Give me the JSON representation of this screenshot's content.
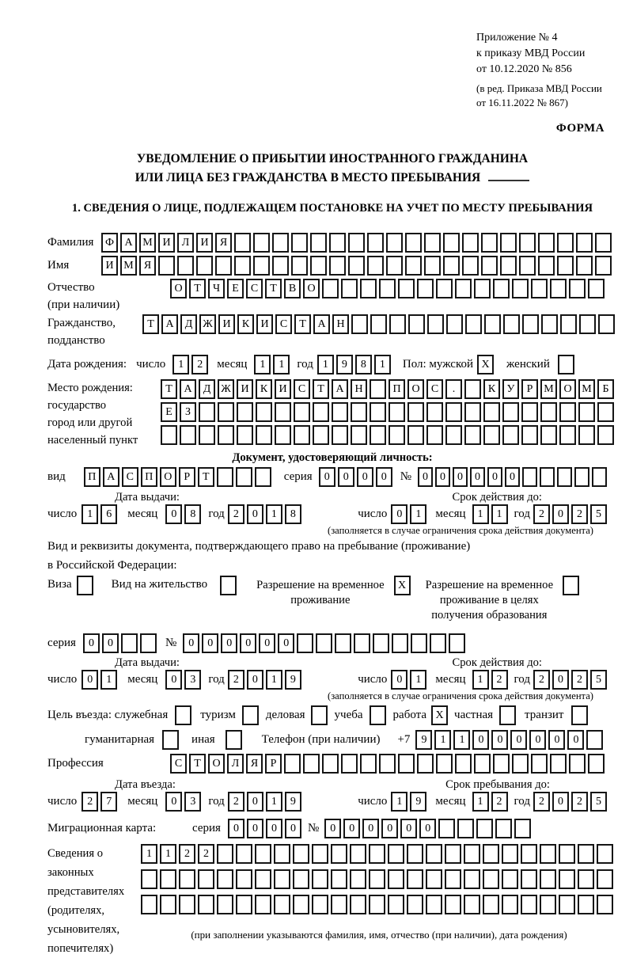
{
  "annex": {
    "line1": "Приложение № 4",
    "line2": "к приказу МВД России",
    "line3": "от 10.12.2020 № 856",
    "line4": "(в ред. Приказа МВД России",
    "line5": "от 16.11.2022 № 867)"
  },
  "form_label": "ФОРМА",
  "title": {
    "line1": "УВЕДОМЛЕНИЕ О ПРИБЫТИИ ИНОСТРАННОГО ГРАЖДАНИНА",
    "line2": "ИЛИ ЛИЦА БЕЗ ГРАЖДАНСТВА В МЕСТО ПРЕБЫВАНИЯ"
  },
  "section1_heading": "1. СВЕДЕНИЯ О ЛИЦЕ, ПОДЛЕЖАЩЕМ ПОСТАНОВКЕ НА УЧЕТ ПО МЕСТУ ПРЕБЫВАНИЯ",
  "labels": {
    "day": "число",
    "month": "месяц",
    "year": "год",
    "series": "серия",
    "number": "№",
    "issue": "Дата выдачи:",
    "valid": "Срок действия до:"
  },
  "surname": {
    "label": "Фамилия",
    "value": "ФАМИЛИЯ",
    "total": 27
  },
  "name": {
    "label": "Имя",
    "value": "ИМЯ",
    "total": 27
  },
  "patronymic": {
    "label1": "Отчество",
    "label2": "(при наличии)",
    "value": "ОТЧЕСТВО",
    "total": 23
  },
  "citizenship": {
    "label1": "Гражданство,",
    "label2": "подданство",
    "value": "ТАДЖИКИСТАН",
    "total": 25
  },
  "birth": {
    "label": "Дата рождения:",
    "day": "12",
    "month": "11",
    "year": "1981",
    "gender_label": "Пол: мужской",
    "male_mark": "X",
    "female_label": "женский",
    "female_mark": ""
  },
  "birthplace": {
    "label1": "Место рождения:",
    "label2": "государство",
    "label3": "город или другой",
    "label4": "населенный пункт",
    "row1": {
      "value": "ТАДЖИКИСТАН ПОС. КУРМОМБ",
      "total": 24
    },
    "row2": {
      "value": "ЕЗ",
      "total": 24
    },
    "row3": {
      "value": "",
      "total": 24
    }
  },
  "identity_doc": {
    "heading": "Документ, удостоверяющий личность:",
    "type_label": "вид",
    "type": {
      "value": "ПАСПОРТ",
      "total": 10
    },
    "series": {
      "value": "0000",
      "total": 4
    },
    "number": {
      "value": "000000",
      "total": 11
    },
    "issue_day": "16",
    "issue_month": "08",
    "issue_year": "2018",
    "valid_day": "01",
    "valid_month": "11",
    "valid_year": "2025",
    "footnote": "(заполняется в случае ограничения срока действия документа)"
  },
  "residence_doc": {
    "intro1": "Вид и реквизиты документа, подтверждающего право на пребывание (проживание)",
    "intro2": "в Российской Федерации:",
    "visa_label": "Виза",
    "visa_mark": "",
    "residence_permit_label": "Вид на жительство",
    "residence_permit_mark": "",
    "temp_permit_label1": "Разрешение на временное",
    "temp_permit_label2": "проживание",
    "temp_permit_mark": "X",
    "edu_permit_label1": "Разрешение на временное",
    "edu_permit_label2": "проживание в целях",
    "edu_permit_label3": "получения образования",
    "edu_permit_mark": "",
    "series": {
      "value": "00",
      "total": 4
    },
    "number": {
      "value": "000000",
      "total": 15
    },
    "issue_day": "01",
    "issue_month": "03",
    "issue_year": "2019",
    "valid_day": "01",
    "valid_month": "12",
    "valid_year": "2025",
    "footnote": "(заполняется в случае ограничения срока действия документа)"
  },
  "visit": {
    "purpose_label": "Цель въезда: служебная",
    "official_mark": "",
    "tourism_label": "туризм",
    "tourism_mark": "",
    "business_label": "деловая",
    "business_mark": "",
    "study_label": "учеба",
    "study_mark": "",
    "work_label": "работа",
    "work_mark": "X",
    "private_label": "частная",
    "private_mark": "",
    "transit_label": "транзит",
    "transit_mark": "",
    "humanitarian_label": "гуманитарная",
    "humanitarian_mark": "",
    "other_label": "иная",
    "other_mark": "",
    "phone_label": "Телефон (при наличии)",
    "phone_prefix": "+7",
    "phone": {
      "value": "911000000",
      "total": 10
    }
  },
  "profession": {
    "label": "Профессия",
    "value": "СТОЛЯР",
    "total": 23
  },
  "entry": {
    "header_left": "Дата въезда:",
    "header_right": "Срок пребывания до:",
    "entry_day": "27",
    "entry_month": "03",
    "entry_year": "2019",
    "until_day": "19",
    "until_month": "12",
    "until_year": "2025"
  },
  "migration_card": {
    "label": "Миграционная карта:",
    "series": {
      "value": "0000",
      "total": 4
    },
    "number": {
      "value": "000000",
      "total": 11
    }
  },
  "legal_reps": {
    "label1": "Сведения о",
    "label2": "законных",
    "label3": "представителях",
    "label4": "(родителях,",
    "label5": "усыновителях,",
    "label6": "попечителях)",
    "row1": {
      "value": "1122",
      "total": 25
    },
    "row2": {
      "value": "",
      "total": 25
    },
    "row3": {
      "value": "",
      "total": 25
    },
    "footnote": "(при заполнении указываются фамилия, имя, отчество (при наличии), дата рождения)"
  }
}
